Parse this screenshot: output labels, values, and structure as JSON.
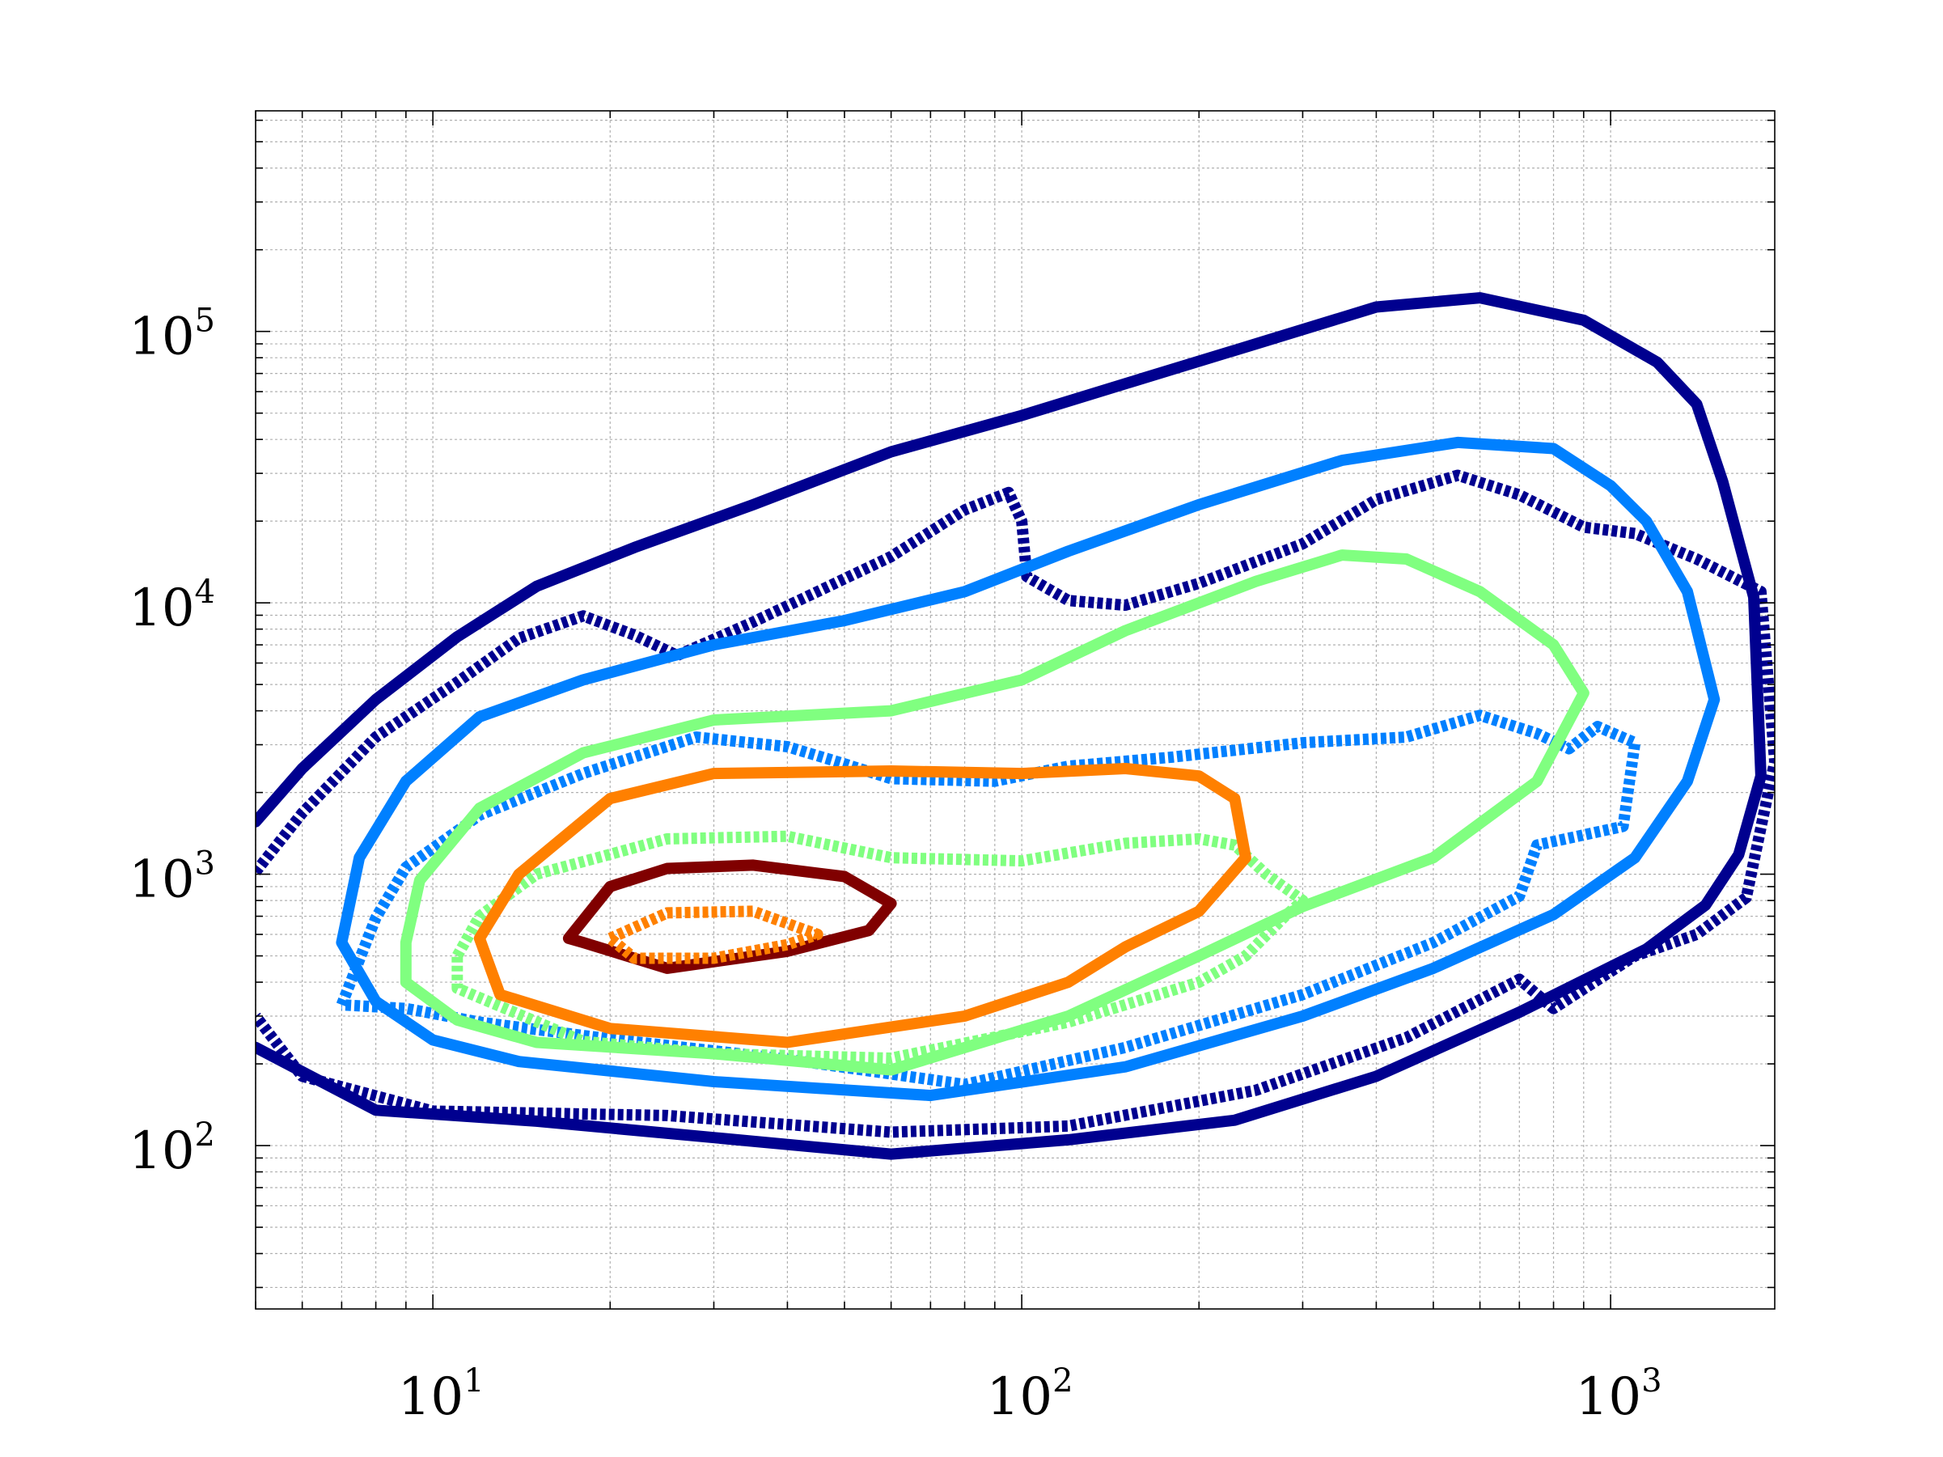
{
  "chart_data": {
    "type": "line",
    "title": "",
    "xlabel": "",
    "ylabel": "",
    "xscale": "log",
    "yscale": "log",
    "xlim": [
      5,
      1900
    ],
    "ylim": [
      25,
      650000
    ],
    "grid": true,
    "legend": "none",
    "xticks": [
      {
        "value": 10,
        "base": "10",
        "exp": "1"
      },
      {
        "value": 100,
        "base": "10",
        "exp": "2"
      },
      {
        "value": 1000,
        "base": "10",
        "exp": "3"
      }
    ],
    "yticks": [
      {
        "value": 100,
        "base": "10",
        "exp": "2"
      },
      {
        "value": 1000,
        "base": "10",
        "exp": "3"
      },
      {
        "value": 10000,
        "base": "10",
        "exp": "4"
      },
      {
        "value": 100000,
        "base": "10",
        "exp": "5"
      }
    ],
    "series": [
      {
        "color": "#00008f",
        "style": "solid",
        "points": [
          [
            5,
            1560
          ],
          [
            6,
            2450
          ],
          [
            8,
            4400
          ],
          [
            11,
            7500
          ],
          [
            15,
            11500
          ],
          [
            22,
            16000
          ],
          [
            35,
            23000
          ],
          [
            60,
            36000
          ],
          [
            100,
            49000
          ],
          [
            160,
            67000
          ],
          [
            250,
            90000
          ],
          [
            400,
            123000
          ],
          [
            600,
            133000
          ],
          [
            900,
            110000
          ],
          [
            1200,
            77000
          ],
          [
            1400,
            54000
          ],
          [
            1550,
            28000
          ],
          [
            1750,
            10500
          ],
          [
            1800,
            2300
          ],
          [
            1650,
            1180
          ],
          [
            1450,
            770
          ],
          [
            1150,
            530
          ],
          [
            700,
            310
          ],
          [
            400,
            180
          ],
          [
            230,
            124
          ],
          [
            120,
            105
          ],
          [
            60,
            93
          ],
          [
            30,
            107
          ],
          [
            15,
            123
          ],
          [
            8,
            135
          ],
          [
            5,
            230
          ]
        ]
      },
      {
        "color": "#00008f",
        "style": "dashed",
        "points": [
          [
            5,
            1020
          ],
          [
            6,
            1680
          ],
          [
            8,
            3200
          ],
          [
            11,
            5100
          ],
          [
            14,
            7400
          ],
          [
            18,
            8950
          ],
          [
            22,
            7600
          ],
          [
            26,
            6400
          ],
          [
            35,
            8500
          ],
          [
            45,
            11000
          ],
          [
            60,
            14800
          ],
          [
            80,
            22000
          ],
          [
            95,
            25500
          ],
          [
            100,
            20000
          ],
          [
            102,
            12500
          ],
          [
            120,
            10200
          ],
          [
            150,
            9800
          ],
          [
            200,
            11800
          ],
          [
            300,
            16500
          ],
          [
            400,
            24000
          ],
          [
            550,
            29500
          ],
          [
            700,
            25000
          ],
          [
            900,
            19000
          ],
          [
            1100,
            18000
          ],
          [
            1400,
            14500
          ],
          [
            1800,
            11000
          ],
          [
            1900,
            2600
          ],
          [
            1700,
            820
          ],
          [
            1400,
            600
          ],
          [
            1100,
            500
          ],
          [
            800,
            320
          ],
          [
            700,
            410
          ],
          [
            450,
            250
          ],
          [
            250,
            160
          ],
          [
            120,
            118
          ],
          [
            60,
            112
          ],
          [
            25,
            129
          ],
          [
            10,
            134
          ],
          [
            6,
            180
          ],
          [
            5,
            300
          ]
        ]
      },
      {
        "color": "#0080ff",
        "style": "solid",
        "points": [
          [
            7,
            560
          ],
          [
            7.5,
            1150
          ],
          [
            9,
            2200
          ],
          [
            12,
            3800
          ],
          [
            18,
            5200
          ],
          [
            30,
            7000
          ],
          [
            50,
            8600
          ],
          [
            80,
            11000
          ],
          [
            120,
            15500
          ],
          [
            200,
            23000
          ],
          [
            350,
            33500
          ],
          [
            550,
            39000
          ],
          [
            800,
            37000
          ],
          [
            1000,
            27000
          ],
          [
            1150,
            20000
          ],
          [
            1350,
            11000
          ],
          [
            1500,
            4400
          ],
          [
            1350,
            2200
          ],
          [
            1100,
            1150
          ],
          [
            800,
            710
          ],
          [
            500,
            450
          ],
          [
            300,
            300
          ],
          [
            150,
            195
          ],
          [
            70,
            153
          ],
          [
            30,
            172
          ],
          [
            14,
            204
          ],
          [
            10,
            245
          ],
          [
            8,
            340
          ],
          [
            7,
            560
          ]
        ]
      },
      {
        "color": "#0080ff",
        "style": "dashed",
        "points": [
          [
            7,
            330
          ],
          [
            8,
            690
          ],
          [
            9,
            1060
          ],
          [
            12,
            1650
          ],
          [
            18,
            2350
          ],
          [
            28,
            3200
          ],
          [
            40,
            2950
          ],
          [
            50,
            2550
          ],
          [
            60,
            2250
          ],
          [
            90,
            2200
          ],
          [
            120,
            2500
          ],
          [
            180,
            2700
          ],
          [
            300,
            3050
          ],
          [
            450,
            3200
          ],
          [
            600,
            3850
          ],
          [
            750,
            3300
          ],
          [
            850,
            2900
          ],
          [
            950,
            3500
          ],
          [
            1100,
            3050
          ],
          [
            1050,
            1500
          ],
          [
            750,
            1280
          ],
          [
            700,
            830
          ],
          [
            500,
            560
          ],
          [
            300,
            360
          ],
          [
            150,
            230
          ],
          [
            80,
            168
          ],
          [
            40,
            208
          ],
          [
            20,
            247
          ],
          [
            12,
            285
          ],
          [
            9,
            320
          ],
          [
            7,
            330
          ]
        ]
      },
      {
        "color": "#80ff80",
        "style": "solid",
        "points": [
          [
            9,
            560
          ],
          [
            9.5,
            950
          ],
          [
            12,
            1750
          ],
          [
            18,
            2800
          ],
          [
            30,
            3700
          ],
          [
            60,
            4000
          ],
          [
            100,
            5200
          ],
          [
            150,
            7900
          ],
          [
            250,
            12000
          ],
          [
            350,
            15000
          ],
          [
            450,
            14500
          ],
          [
            600,
            11000
          ],
          [
            800,
            7000
          ],
          [
            900,
            4650
          ],
          [
            750,
            2200
          ],
          [
            500,
            1150
          ],
          [
            300,
            760
          ],
          [
            200,
            500
          ],
          [
            120,
            300
          ],
          [
            60,
            190
          ],
          [
            30,
            218
          ],
          [
            15,
            240
          ],
          [
            11,
            290
          ],
          [
            9,
            400
          ],
          [
            9,
            560
          ]
        ]
      },
      {
        "color": "#80ff80",
        "style": "dashed",
        "points": [
          [
            11,
            500
          ],
          [
            12,
            700
          ],
          [
            15,
            1000
          ],
          [
            25,
            1350
          ],
          [
            40,
            1380
          ],
          [
            60,
            1150
          ],
          [
            100,
            1120
          ],
          [
            150,
            1300
          ],
          [
            200,
            1350
          ],
          [
            230,
            1280
          ],
          [
            260,
            1000
          ],
          [
            300,
            800
          ],
          [
            280,
            700
          ],
          [
            240,
            500
          ],
          [
            200,
            400
          ],
          [
            120,
            285
          ],
          [
            60,
            210
          ],
          [
            30,
            218
          ],
          [
            18,
            242
          ],
          [
            11,
            380
          ],
          [
            11,
            500
          ]
        ]
      },
      {
        "color": "#ff8000",
        "style": "solid",
        "points": [
          [
            12,
            580
          ],
          [
            14,
            1000
          ],
          [
            20,
            1900
          ],
          [
            30,
            2350
          ],
          [
            60,
            2400
          ],
          [
            100,
            2350
          ],
          [
            150,
            2450
          ],
          [
            200,
            2300
          ],
          [
            230,
            1900
          ],
          [
            240,
            1150
          ],
          [
            200,
            730
          ],
          [
            150,
            540
          ],
          [
            120,
            400
          ],
          [
            80,
            300
          ],
          [
            40,
            240
          ],
          [
            20,
            270
          ],
          [
            13,
            360
          ],
          [
            12,
            580
          ]
        ]
      },
      {
        "color": "#800000",
        "style": "solid",
        "points": [
          [
            17,
            580
          ],
          [
            20,
            900
          ],
          [
            25,
            1050
          ],
          [
            35,
            1080
          ],
          [
            50,
            980
          ],
          [
            60,
            780
          ],
          [
            55,
            620
          ],
          [
            40,
            520
          ],
          [
            25,
            450
          ],
          [
            18,
            560
          ],
          [
            17,
            580
          ]
        ]
      },
      {
        "color": "#ff8000",
        "style": "dashed",
        "points": [
          [
            20,
            580
          ],
          [
            25,
            720
          ],
          [
            35,
            730
          ],
          [
            45,
            600
          ],
          [
            40,
            550
          ],
          [
            30,
            490
          ],
          [
            22,
            490
          ],
          [
            20,
            580
          ]
        ]
      }
    ]
  }
}
